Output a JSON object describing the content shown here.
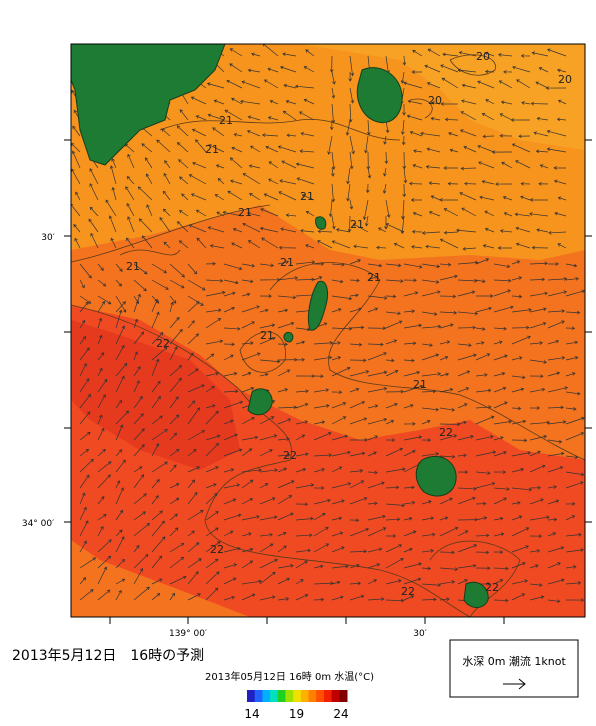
{
  "map": {
    "lat_labels": [
      "30′",
      "34° 00′"
    ],
    "lon_labels": [
      "139° 00′",
      "30′"
    ],
    "contour_labels": [
      20,
      20,
      20,
      21,
      21,
      21,
      21,
      21,
      21,
      21,
      21,
      21,
      22,
      21,
      22,
      22,
      22,
      22,
      22
    ]
  },
  "caption": {
    "title": "2013年5月12日　16時の予測",
    "subtitle": "2013年05月12日 16時 0m 水温(°C)"
  },
  "colorbar": {
    "ticks": [
      14,
      19,
      24
    ]
  },
  "legend": {
    "label": "水深 0m 潮流 1knot"
  }
}
